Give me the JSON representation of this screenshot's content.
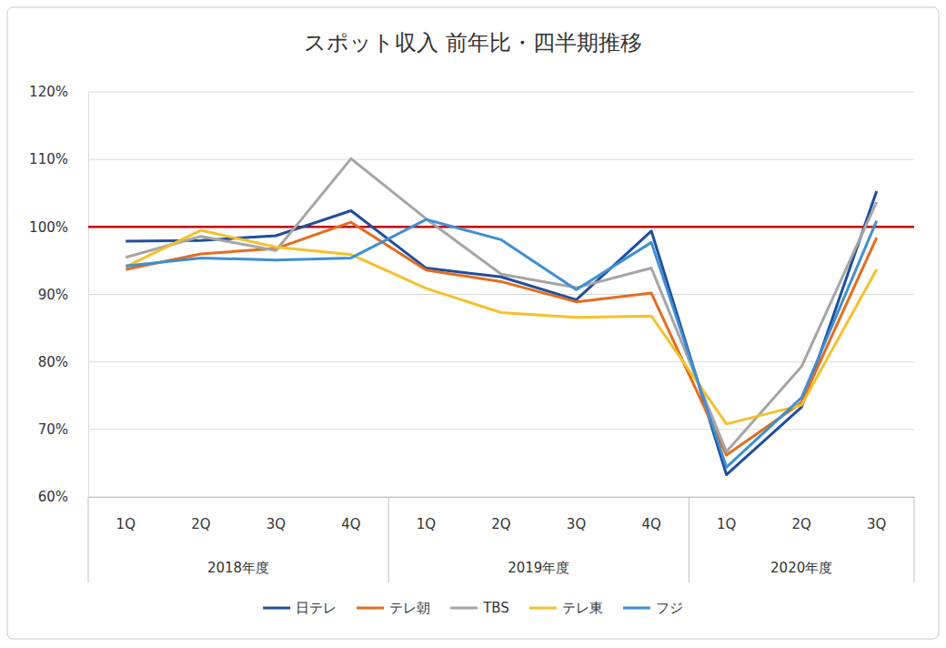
{
  "chart_data": {
    "type": "line",
    "title": "スポット収入 前年比・四半期推移",
    "categories": [
      "1Q",
      "2Q",
      "3Q",
      "4Q",
      "1Q",
      "2Q",
      "3Q",
      "4Q",
      "1Q",
      "2Q",
      "3Q"
    ],
    "category_groups": [
      {
        "name": "2018年度",
        "count": 4
      },
      {
        "name": "2019年度",
        "count": 4
      },
      {
        "name": "2020年度",
        "count": 3
      }
    ],
    "series": [
      {
        "name": "日テレ",
        "color": "#1f4e9c",
        "values": [
          97.9,
          98.0,
          98.7,
          102.4,
          93.9,
          92.6,
          89.2,
          99.4,
          63.3,
          73.3,
          105.3
        ]
      },
      {
        "name": "テレ朝",
        "color": "#e46c1e",
        "values": [
          93.7,
          96.0,
          96.8,
          100.7,
          93.6,
          91.9,
          88.9,
          90.2,
          66.2,
          74.0,
          98.4
        ]
      },
      {
        "name": "TBS",
        "color": "#a5a5a5",
        "values": [
          95.5,
          98.6,
          96.5,
          110.1,
          101.2,
          93.0,
          91.0,
          93.9,
          66.7,
          79.3,
          103.7
        ]
      },
      {
        "name": "テレ東",
        "color": "#f5c02a",
        "values": [
          94.1,
          99.5,
          97.0,
          95.9,
          90.9,
          87.3,
          86.6,
          86.8,
          70.8,
          73.6,
          93.7
        ]
      },
      {
        "name": "フジ",
        "color": "#3f8fd2",
        "values": [
          94.2,
          95.4,
          95.1,
          95.4,
          101.1,
          98.1,
          90.7,
          97.7,
          64.4,
          74.7,
          100.9
        ]
      }
    ],
    "reference_lines": [
      {
        "value": 100,
        "color": "#c00000"
      }
    ],
    "ylim": [
      60,
      120
    ],
    "yticks": [
      {
        "value": 60,
        "label": "60%"
      },
      {
        "value": 70,
        "label": "70%"
      },
      {
        "value": 80,
        "label": "80%"
      },
      {
        "value": 90,
        "label": "90%"
      },
      {
        "value": 100,
        "label": "100%"
      },
      {
        "value": 110,
        "label": "110%"
      },
      {
        "value": 120,
        "label": "120%"
      }
    ],
    "grid": true,
    "legend": "bottom"
  }
}
